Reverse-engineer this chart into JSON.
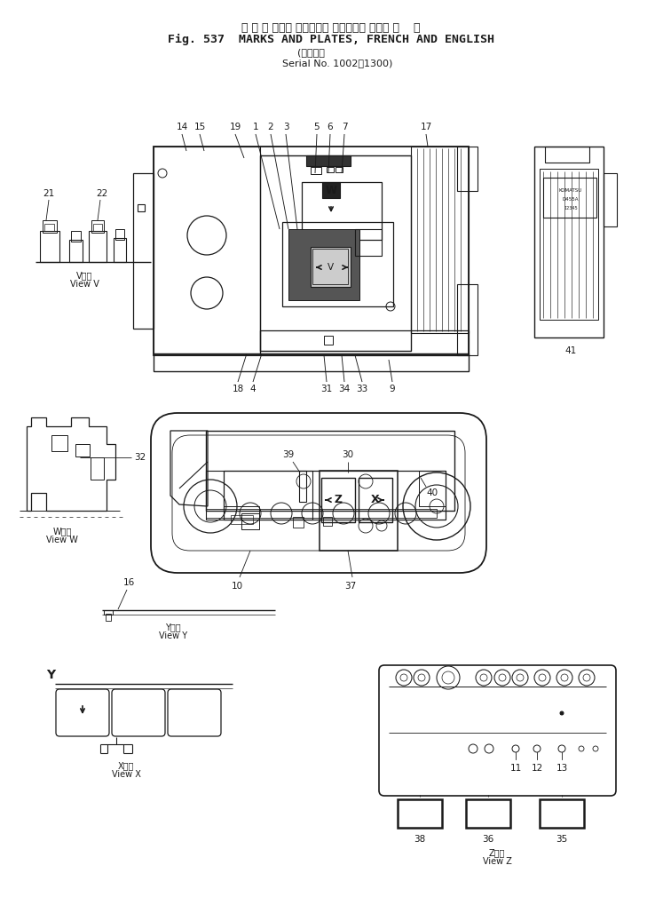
{
  "title_jp": "マ ー ク および プレート， フランス語 および 英    語",
  "title_en": "Fig. 537  MARKS AND PLATES, FRENCH AND ENGLISH",
  "serial_jp": "適用号機",
  "serial_en": "Serial No. 1002～1300",
  "bg_color": "#ffffff",
  "line_color": "#1a1a1a"
}
